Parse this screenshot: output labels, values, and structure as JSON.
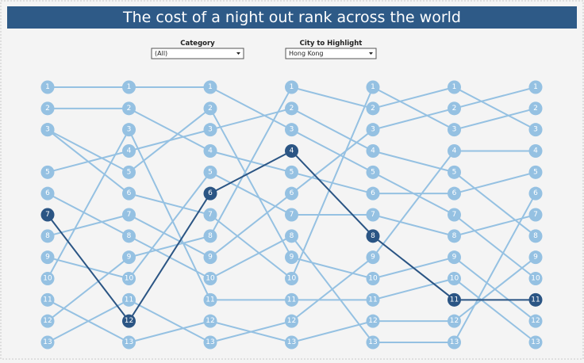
{
  "header": {
    "title": "The cost of a night out rank across the world"
  },
  "filters": [
    {
      "label": "Category",
      "value": "(All)"
    },
    {
      "label": "City to Highlight",
      "value": "Hong Kong"
    }
  ],
  "chart_data": {
    "type": "line",
    "ylim": [
      1,
      13
    ],
    "invert_y": true,
    "marker_labels": true,
    "series": [
      {
        "color": "#95c1e2",
        "values": [
          1,
          1,
          1,
          3,
          5,
          7,
          10
        ]
      },
      {
        "color": "#95c1e2",
        "values": [
          2,
          2,
          4,
          5,
          6,
          6,
          5
        ]
      },
      {
        "color": "#95c1e2",
        "values": [
          3,
          5,
          2,
          9,
          10,
          9,
          12
        ]
      },
      {
        "color": "#95c1e2",
        "values": [
          3,
          6,
          7,
          10,
          1,
          3,
          2
        ]
      },
      {
        "color": "#95c1e2",
        "values": [
          5,
          4,
          3,
          2,
          4,
          5,
          8
        ]
      },
      {
        "color": "#95c1e2",
        "values": [
          6,
          8,
          10,
          8,
          13,
          13,
          6
        ]
      },
      {
        "color": "#95c1e2",
        "values": [
          8,
          7,
          9,
          6,
          3,
          2,
          1
        ]
      },
      {
        "color": "#95c1e2",
        "values": [
          9,
          10,
          5,
          7,
          7,
          8,
          7
        ]
      },
      {
        "color": "#95c1e2",
        "values": [
          10,
          3,
          11,
          11,
          11,
          10,
          13
        ]
      },
      {
        "color": "#95c1e2",
        "values": [
          11,
          13,
          12,
          13,
          12,
          12,
          9
        ]
      },
      {
        "color": "#95c1e2",
        "values": [
          12,
          9,
          8,
          1,
          2,
          1,
          3
        ]
      },
      {
        "color": "#95c1e2",
        "values": [
          13,
          11,
          13,
          12,
          9,
          4,
          4
        ]
      },
      {
        "color": "#2b5584",
        "values": [
          7,
          12,
          6,
          4,
          8,
          11,
          11
        ]
      }
    ]
  }
}
